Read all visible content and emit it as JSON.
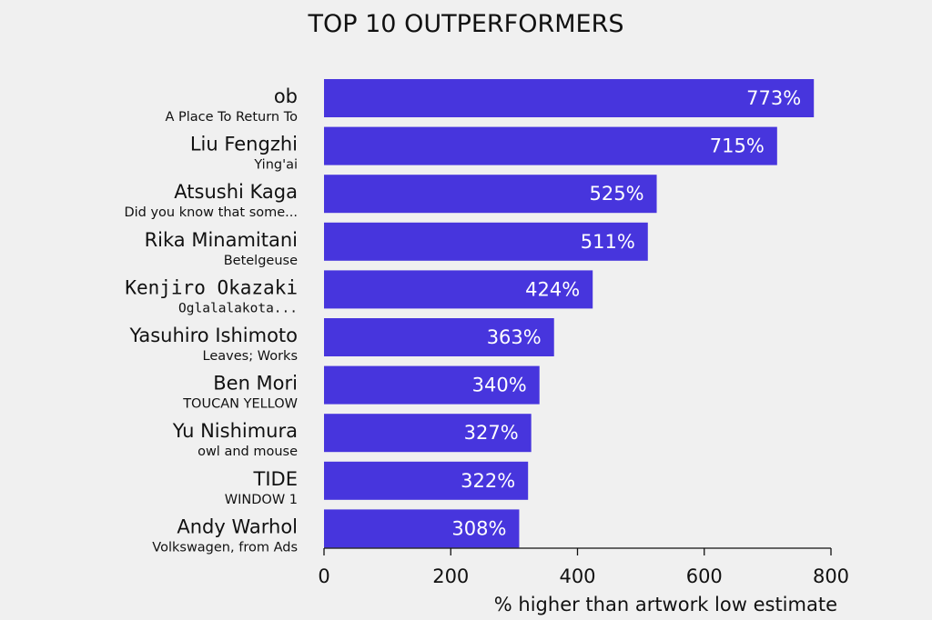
{
  "chart_data": {
    "type": "bar",
    "orientation": "horizontal",
    "title": "TOP 10 OUTPERFORMERS",
    "xlabel": "% higher than artwork low estimate",
    "xlim": [
      0,
      800
    ],
    "xticks": [
      0,
      200,
      400,
      600,
      800
    ],
    "bar_color": "#4735dd",
    "background": "#f0f0f0",
    "grid": false,
    "bars": [
      {
        "artist": "ob",
        "artwork": "A Place To Return To",
        "value": 773,
        "label": "773%"
      },
      {
        "artist": "Liu Fengzhi",
        "artwork": "Ying'ai",
        "value": 715,
        "label": "715%"
      },
      {
        "artist": "Atsushi Kaga",
        "artwork": "Did you know that some...",
        "value": 525,
        "label": "525%"
      },
      {
        "artist": "Rika Minamitani",
        "artwork": "Betelgeuse",
        "value": 511,
        "label": "511%"
      },
      {
        "artist": "Kenjiro Okazaki",
        "artwork": "Oglalalakota...",
        "value": 424,
        "label": "424%",
        "monospace": true
      },
      {
        "artist": "Yasuhiro Ishimoto",
        "artwork": "Leaves; Works",
        "value": 363,
        "label": "363%"
      },
      {
        "artist": "Ben Mori",
        "artwork": "TOUCAN YELLOW",
        "value": 340,
        "label": "340%"
      },
      {
        "artist": "Yu Nishimura",
        "artwork": "owl and mouse",
        "value": 327,
        "label": "327%"
      },
      {
        "artist": "TIDE",
        "artwork": "WINDOW 1",
        "value": 322,
        "label": "322%"
      },
      {
        "artist": "Andy Warhol",
        "artwork": "Volkswagen, from Ads",
        "value": 308,
        "label": "308%"
      }
    ]
  }
}
